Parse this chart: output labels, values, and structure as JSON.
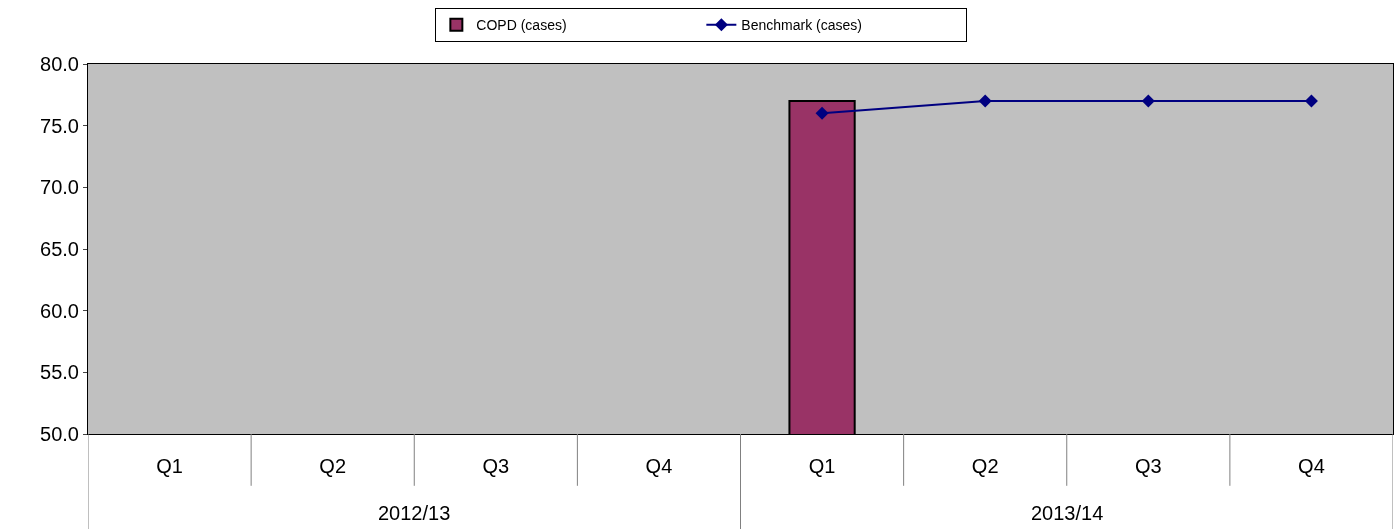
{
  "chart_data": {
    "type": "bar",
    "categories": [
      "Q1",
      "Q2",
      "Q3",
      "Q4",
      "Q1",
      "Q2",
      "Q3",
      "Q4"
    ],
    "series": [
      {
        "name": "COPD (cases)",
        "color": "#993366",
        "values": [
          null,
          null,
          null,
          null,
          77,
          null,
          null,
          null
        ]
      },
      {
        "name": "Benchmark (cases)",
        "type": "line",
        "color": "#000080",
        "marker": "diamond",
        "values": [
          null,
          null,
          null,
          null,
          76,
          77,
          77,
          77
        ]
      }
    ],
    "annotations": [
      "2012/13",
      "2013/14"
    ],
    "ylim": [
      50,
      80
    ],
    "yticks": [
      {
        "value": 50,
        "label": "50.0"
      },
      {
        "value": 55,
        "label": "55.0"
      },
      {
        "value": 60,
        "label": "60.0"
      },
      {
        "value": 65,
        "label": "65.0"
      },
      {
        "value": 70,
        "label": "70.0"
      },
      {
        "value": 75,
        "label": "75.0"
      },
      {
        "value": 80,
        "label": "80.0"
      }
    ],
    "grid": false,
    "legend": "top"
  }
}
